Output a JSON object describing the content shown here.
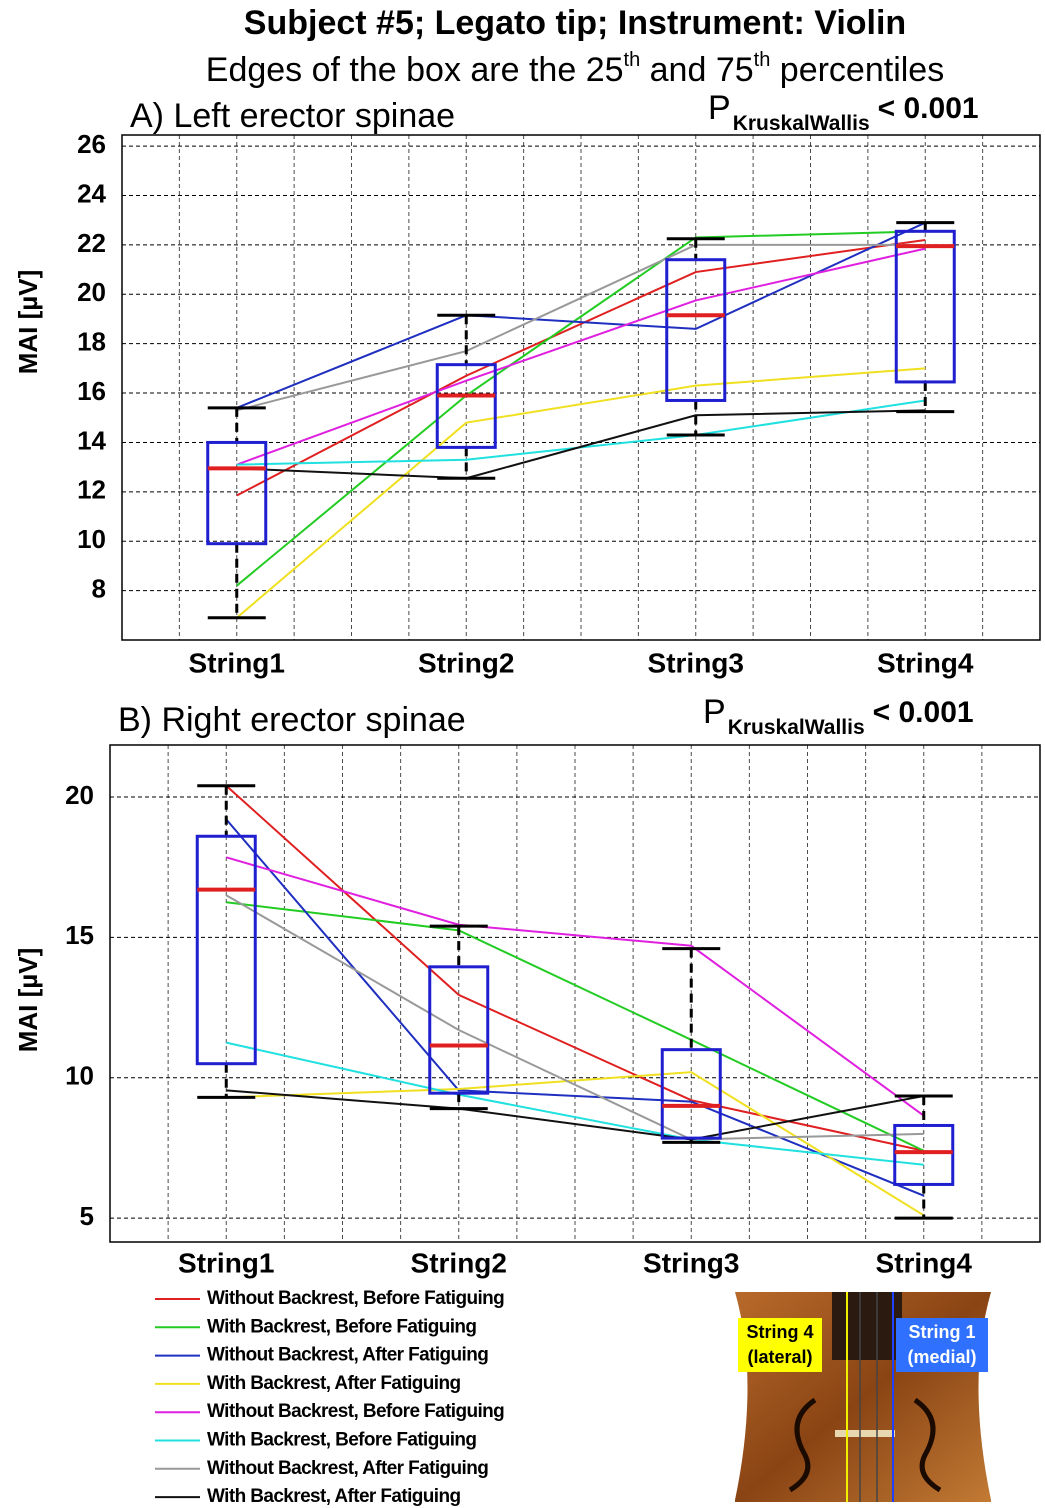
{
  "header": {
    "title": "Subject #5; Legato tip; Instrument: Violin",
    "subtitle": [
      "Edges of the box are the 25",
      "th",
      " and 75",
      "th",
      " percentiles"
    ]
  },
  "chart_data": [
    {
      "type": "box",
      "title": "A) Left erector spinae",
      "p_label": {
        "p": "P",
        "sub": "KruskalWallis",
        "text": "< 0.001"
      },
      "ylabel": "MAI [µV]",
      "categories": [
        "String1",
        "String2",
        "String3",
        "String4"
      ],
      "boxes": [
        {
          "whislo": 6.9,
          "q1": 9.9,
          "med": 12.95,
          "q3": 14.0,
          "whishi": 15.4
        },
        {
          "whislo": 12.55,
          "q1": 13.8,
          "med": 15.9,
          "q3": 17.15,
          "whishi": 19.15
        },
        {
          "whislo": 14.3,
          "q1": 15.7,
          "med": 19.15,
          "q3": 21.4,
          "whishi": 22.25
        },
        {
          "whislo": 15.25,
          "q1": 16.45,
          "med": 21.95,
          "q3": 22.55,
          "whishi": 22.9
        }
      ],
      "box_color": "#1f1fd0",
      "median_color": "#e02020",
      "series": [
        {
          "color": "#e02020",
          "values": [
            11.85,
            16.7,
            20.9,
            22.2
          ]
        },
        {
          "color": "#22cc22",
          "values": [
            8.2,
            15.9,
            22.3,
            22.55
          ]
        },
        {
          "color": "#1f2fc0",
          "values": [
            15.4,
            19.15,
            18.6,
            22.9
          ]
        },
        {
          "color": "#f0e020",
          "values": [
            6.9,
            14.8,
            16.3,
            17.0
          ]
        },
        {
          "color": "#e020e0",
          "values": [
            13.1,
            16.5,
            19.75,
            21.85
          ]
        },
        {
          "color": "#20e0e0",
          "values": [
            13.1,
            13.3,
            14.3,
            15.7
          ]
        },
        {
          "color": "#999999",
          "values": [
            15.3,
            17.7,
            22.0,
            22.0
          ]
        },
        {
          "color": "#111111",
          "values": [
            12.95,
            12.55,
            15.1,
            15.3
          ]
        }
      ],
      "ylim": [
        6,
        26.45
      ],
      "yticks": [
        8,
        10,
        12,
        14,
        16,
        18,
        20,
        22,
        24,
        26
      ],
      "grid": true
    },
    {
      "type": "box",
      "title": "B) Right erector spinae",
      "p_label": {
        "p": "P",
        "sub": "KruskalWallis",
        "text": "< 0.001"
      },
      "ylabel": "MAI [µV]",
      "categories": [
        "String1",
        "String2",
        "String3",
        "String4"
      ],
      "boxes": [
        {
          "whislo": 9.3,
          "q1": 10.5,
          "med": 16.7,
          "q3": 18.6,
          "whishi": 20.4
        },
        {
          "whislo": 8.9,
          "q1": 9.45,
          "med": 11.15,
          "q3": 13.95,
          "whishi": 15.4
        },
        {
          "whislo": 7.7,
          "q1": 7.85,
          "med": 9.0,
          "q3": 11.0,
          "whishi": 14.6
        },
        {
          "whislo": 5.0,
          "q1": 6.2,
          "med": 7.35,
          "q3": 8.3,
          "whishi": 9.35
        }
      ],
      "box_color": "#1f1fd0",
      "median_color": "#e02020",
      "series": [
        {
          "name": "Without Backrest, Before Fatiguing",
          "color": "#e02020",
          "values": [
            20.4,
            12.95,
            9.2,
            7.4
          ]
        },
        {
          "name": "With Backrest, Before Fatiguing",
          "color": "#22cc22",
          "values": [
            16.25,
            15.25,
            11.35,
            7.4
          ]
        },
        {
          "name": "Without Backrest, After Fatiguing",
          "color": "#1f2fc0",
          "values": [
            19.2,
            9.55,
            9.15,
            5.8
          ]
        },
        {
          "name": "With Backrest, After Fatiguing",
          "color": "#f0e020",
          "values": [
            9.3,
            9.6,
            10.2,
            5.1
          ]
        },
        {
          "name": "Without Backrest, Before Fatiguing",
          "color": "#e020e0",
          "values": [
            17.85,
            15.45,
            14.7,
            8.65
          ]
        },
        {
          "name": "With Backrest, Before Fatiguing",
          "color": "#20e0e0",
          "values": [
            11.25,
            9.4,
            7.8,
            6.9
          ]
        },
        {
          "name": "Without Backrest, After Fatiguing",
          "color": "#999999",
          "values": [
            16.5,
            11.7,
            7.8,
            8.0
          ]
        },
        {
          "name": "With Backrest, After Fatiguing",
          "color": "#111111",
          "values": [
            9.55,
            8.9,
            7.8,
            9.35
          ]
        }
      ],
      "ylim": [
        4.15,
        21.85
      ],
      "yticks": [
        5,
        10,
        15,
        20
      ],
      "grid": true
    }
  ],
  "image_labels": {
    "string4": [
      "String 4",
      "(lateral)"
    ],
    "string1": [
      "String 1",
      "(medial)"
    ]
  }
}
